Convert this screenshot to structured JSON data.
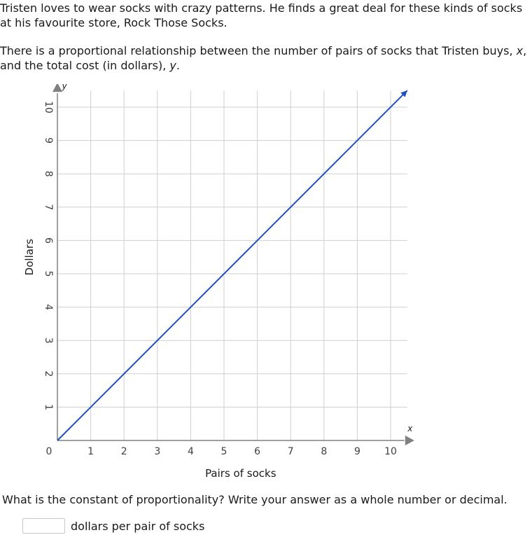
{
  "problem": {
    "paragraph1_line1": "Tristen loves to wear socks with crazy patterns. He finds a great deal for these kinds of socks",
    "paragraph1_line2": "at his favourite store, Rock Those Socks.",
    "paragraph2_line1_pre": "There is a proportional relationship between the number of pairs of socks that Tristen buys, ",
    "paragraph2_var_x": "x",
    "paragraph2_line1_post": ",",
    "paragraph2_line2_pre": "and the total cost (in dollars), ",
    "paragraph2_var_y": "y",
    "paragraph2_line2_post": "."
  },
  "chart_data": {
    "type": "line",
    "xlabel": "Pairs of socks",
    "ylabel": "Dollars",
    "x_axis_var": "x",
    "y_axis_var": "y",
    "xlim": [
      0,
      10.5
    ],
    "ylim": [
      0,
      10.5
    ],
    "x_ticks": [
      1,
      2,
      3,
      4,
      5,
      6,
      7,
      8,
      9,
      10
    ],
    "y_ticks": [
      1,
      2,
      3,
      4,
      5,
      6,
      7,
      8,
      9,
      10
    ],
    "origin_label": "0",
    "grid": true,
    "series": [
      {
        "points": [
          [
            0,
            0
          ],
          [
            10.5,
            10.5
          ]
        ],
        "color": "#1c4fbf"
      }
    ]
  },
  "question": {
    "text": "What is the constant of proportionality? Write your answer as a whole number or decimal.",
    "answer_value": "",
    "unit_label": "dollars per pair of socks"
  }
}
